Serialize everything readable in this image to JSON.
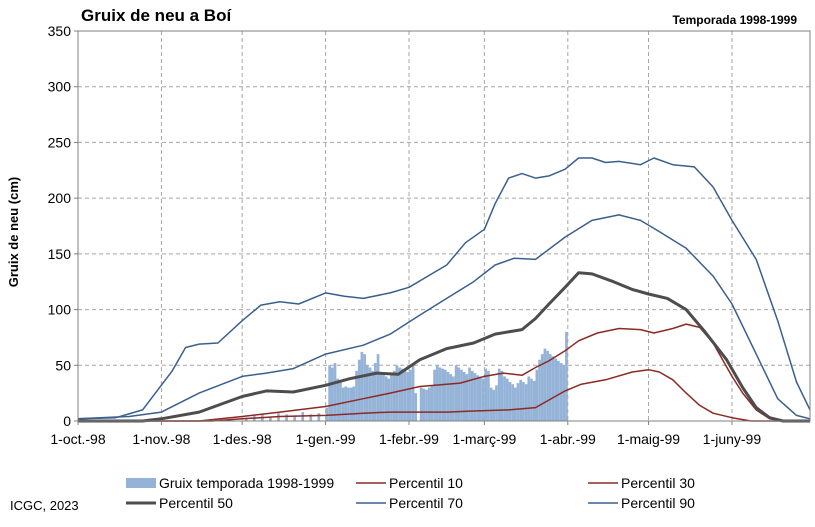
{
  "chart_data": {
    "type": "line",
    "title": "Gruix de neu a Boí",
    "subtitle": "Temporada 1998-1999",
    "ylabel": "Gruix de neu (cm)",
    "xlabel": "",
    "ylim": [
      0,
      350
    ],
    "yticks": [
      0,
      50,
      100,
      150,
      200,
      250,
      300,
      350
    ],
    "xlim": [
      "1998-10-01",
      "1999-06-30"
    ],
    "xtick_dates": [
      "1998-10-01",
      "1998-11-01",
      "1998-12-01",
      "1999-01-01",
      "1999-02-01",
      "1999-03-01",
      "1999-04-01",
      "1999-05-01",
      "1999-06-01"
    ],
    "xtick_labels": [
      "1-oct.-98",
      "1-nov.-98",
      "1-des.-98",
      "1-gen.-99",
      "1-febr.-99",
      "1-març-99",
      "1-abr.-99",
      "1-maig-99",
      "1-juny-99"
    ],
    "grid": true,
    "legend_placement": "bottom",
    "bars": {
      "name": "Gruix temporada 1998-1999",
      "color": "#95b3d7",
      "points": [
        [
          "1998-12-02",
          3
        ],
        [
          "1998-12-05",
          5
        ],
        [
          "1998-12-08",
          6
        ],
        [
          "1998-12-11",
          4
        ],
        [
          "1998-12-14",
          7
        ],
        [
          "1998-12-17",
          6
        ],
        [
          "1998-12-20",
          5
        ],
        [
          "1998-12-23",
          8
        ],
        [
          "1998-12-26",
          6
        ],
        [
          "1998-12-29",
          7
        ],
        [
          "1999-01-01",
          12
        ],
        [
          "1999-01-02",
          50
        ],
        [
          "1999-01-03",
          48
        ],
        [
          "1999-01-04",
          52
        ],
        [
          "1999-01-05",
          38
        ],
        [
          "1999-01-06",
          35
        ],
        [
          "1999-01-07",
          30
        ],
        [
          "1999-01-08",
          31
        ],
        [
          "1999-01-09",
          30
        ],
        [
          "1999-01-10",
          30
        ],
        [
          "1999-01-11",
          31
        ],
        [
          "1999-01-12",
          45
        ],
        [
          "1999-01-13",
          55
        ],
        [
          "1999-01-14",
          62
        ],
        [
          "1999-01-15",
          60
        ],
        [
          "1999-01-16",
          50
        ],
        [
          "1999-01-17",
          48
        ],
        [
          "1999-01-18",
          45
        ],
        [
          "1999-01-19",
          52
        ],
        [
          "1999-01-20",
          60
        ],
        [
          "1999-01-21",
          44
        ],
        [
          "1999-01-22",
          42
        ],
        [
          "1999-01-23",
          40
        ],
        [
          "1999-01-24",
          38
        ],
        [
          "1999-01-25",
          42
        ],
        [
          "1999-01-26",
          45
        ],
        [
          "1999-01-27",
          50
        ],
        [
          "1999-01-28",
          48
        ],
        [
          "1999-01-29",
          47
        ],
        [
          "1999-01-30",
          45
        ],
        [
          "1999-01-31",
          44
        ],
        [
          "1999-02-01",
          46
        ],
        [
          "1999-02-02",
          50
        ],
        [
          "1999-02-03",
          25
        ],
        [
          "1999-02-05",
          30
        ],
        [
          "1999-02-06",
          29
        ],
        [
          "1999-02-07",
          28
        ],
        [
          "1999-02-08",
          30
        ],
        [
          "1999-02-09",
          32
        ],
        [
          "1999-02-10",
          46
        ],
        [
          "1999-02-11",
          50
        ],
        [
          "1999-02-12",
          48
        ],
        [
          "1999-02-13",
          47
        ],
        [
          "1999-02-14",
          46
        ],
        [
          "1999-02-15",
          44
        ],
        [
          "1999-02-16",
          42
        ],
        [
          "1999-02-17",
          40
        ],
        [
          "1999-02-18",
          50
        ],
        [
          "1999-02-19",
          48
        ],
        [
          "1999-02-20",
          46
        ],
        [
          "1999-02-21",
          44
        ],
        [
          "1999-02-22",
          42
        ],
        [
          "1999-02-23",
          48
        ],
        [
          "1999-02-24",
          45
        ],
        [
          "1999-02-25",
          43
        ],
        [
          "1999-02-26",
          41
        ],
        [
          "1999-02-27",
          40
        ],
        [
          "1999-02-28",
          38
        ],
        [
          "1999-03-01",
          47
        ],
        [
          "1999-03-02",
          45
        ],
        [
          "1999-03-03",
          30
        ],
        [
          "1999-03-04",
          28
        ],
        [
          "1999-03-05",
          32
        ],
        [
          "1999-03-06",
          47
        ],
        [
          "1999-03-07",
          45
        ],
        [
          "1999-03-08",
          40
        ],
        [
          "1999-03-09",
          38
        ],
        [
          "1999-03-10",
          35
        ],
        [
          "1999-03-11",
          33
        ],
        [
          "1999-03-12",
          30
        ],
        [
          "1999-03-13",
          34
        ],
        [
          "1999-03-14",
          37
        ],
        [
          "1999-03-15",
          35
        ],
        [
          "1999-03-16",
          33
        ],
        [
          "1999-03-17",
          40
        ],
        [
          "1999-03-18",
          38
        ],
        [
          "1999-03-19",
          36
        ],
        [
          "1999-03-20",
          46
        ],
        [
          "1999-03-21",
          55
        ],
        [
          "1999-03-22",
          60
        ],
        [
          "1999-03-23",
          65
        ],
        [
          "1999-03-24",
          63
        ],
        [
          "1999-03-25",
          60
        ],
        [
          "1999-03-26",
          58
        ],
        [
          "1999-03-27",
          56
        ],
        [
          "1999-03-28",
          54
        ],
        [
          "1999-03-29",
          52
        ],
        [
          "1999-03-30",
          50
        ],
        [
          "1999-03-31",
          80
        ]
      ]
    },
    "series": [
      {
        "name": "Percentil 10",
        "color": "#8b2a25",
        "width": 1.5,
        "points": [
          [
            "1998-10-01",
            0
          ],
          [
            "1998-11-20",
            0
          ],
          [
            "1998-12-01",
            2
          ],
          [
            "1998-12-15",
            4
          ],
          [
            "1999-01-01",
            5
          ],
          [
            "1999-01-15",
            7
          ],
          [
            "1999-01-25",
            8
          ],
          [
            "1999-02-15",
            8
          ],
          [
            "1999-02-25",
            9
          ],
          [
            "1999-03-10",
            10
          ],
          [
            "1999-03-20",
            12
          ],
          [
            "1999-03-31",
            27
          ],
          [
            "1999-04-06",
            33
          ],
          [
            "1999-04-15",
            37
          ],
          [
            "1999-04-25",
            44
          ],
          [
            "1999-05-01",
            46
          ],
          [
            "1999-05-05",
            44
          ],
          [
            "1999-05-10",
            37
          ],
          [
            "1999-05-15",
            25
          ],
          [
            "1999-05-20",
            14
          ],
          [
            "1999-05-25",
            7
          ],
          [
            "1999-06-01",
            3
          ],
          [
            "1999-06-08",
            0
          ],
          [
            "1999-06-30",
            0
          ]
        ]
      },
      {
        "name": "Percentil 30",
        "color": "#8b2a25",
        "width": 1.5,
        "points": [
          [
            "1998-10-01",
            0
          ],
          [
            "1998-11-15",
            0
          ],
          [
            "1998-12-01",
            4
          ],
          [
            "1998-12-15",
            8
          ],
          [
            "1999-01-01",
            13
          ],
          [
            "1999-01-15",
            20
          ],
          [
            "1999-01-25",
            25
          ],
          [
            "1999-02-05",
            31
          ],
          [
            "1999-02-20",
            34
          ],
          [
            "1999-03-01",
            40
          ],
          [
            "1999-03-08",
            43
          ],
          [
            "1999-03-15",
            41
          ],
          [
            "1999-03-20",
            48
          ],
          [
            "1999-03-25",
            54
          ],
          [
            "1999-03-31",
            63
          ],
          [
            "1999-04-05",
            72
          ],
          [
            "1999-04-12",
            79
          ],
          [
            "1999-04-20",
            83
          ],
          [
            "1999-04-28",
            82
          ],
          [
            "1999-05-03",
            79
          ],
          [
            "1999-05-10",
            83
          ],
          [
            "1999-05-15",
            87
          ],
          [
            "1999-05-20",
            84
          ],
          [
            "1999-05-25",
            70
          ],
          [
            "1999-06-01",
            40
          ],
          [
            "1999-06-05",
            25
          ],
          [
            "1999-06-10",
            10
          ],
          [
            "1999-06-15",
            2
          ],
          [
            "1999-06-20",
            0
          ],
          [
            "1999-06-30",
            0
          ]
        ]
      },
      {
        "name": "Percentil 50",
        "color": "#4d4d4d",
        "width": 3,
        "points": [
          [
            "1998-10-01",
            0
          ],
          [
            "1998-10-25",
            0
          ],
          [
            "1998-11-01",
            2
          ],
          [
            "1998-11-15",
            8
          ],
          [
            "1998-12-01",
            22
          ],
          [
            "1998-12-10",
            27
          ],
          [
            "1998-12-20",
            26
          ],
          [
            "1999-01-01",
            32
          ],
          [
            "1999-01-10",
            38
          ],
          [
            "1999-01-20",
            43
          ],
          [
            "1999-01-28",
            42
          ],
          [
            "1999-02-05",
            55
          ],
          [
            "1999-02-15",
            65
          ],
          [
            "1999-02-25",
            70
          ],
          [
            "1999-03-05",
            78
          ],
          [
            "1999-03-15",
            82
          ],
          [
            "1999-03-20",
            92
          ],
          [
            "1999-03-25",
            105
          ],
          [
            "1999-03-31",
            120
          ],
          [
            "1999-04-05",
            133
          ],
          [
            "1999-04-10",
            132
          ],
          [
            "1999-04-18",
            125
          ],
          [
            "1999-04-25",
            118
          ],
          [
            "1999-05-01",
            114
          ],
          [
            "1999-05-08",
            110
          ],
          [
            "1999-05-15",
            100
          ],
          [
            "1999-05-22",
            80
          ],
          [
            "1999-05-30",
            55
          ],
          [
            "1999-06-05",
            30
          ],
          [
            "1999-06-10",
            12
          ],
          [
            "1999-06-15",
            3
          ],
          [
            "1999-06-20",
            0
          ],
          [
            "1999-06-30",
            0
          ]
        ]
      },
      {
        "name": "Percentil 70",
        "color": "#3a5f8e",
        "width": 1.5,
        "points": [
          [
            "1998-10-01",
            2
          ],
          [
            "1998-10-20",
            4
          ],
          [
            "1998-11-01",
            8
          ],
          [
            "1998-11-15",
            25
          ],
          [
            "1998-12-01",
            40
          ],
          [
            "1998-12-10",
            43
          ],
          [
            "1998-12-20",
            47
          ],
          [
            "1999-01-01",
            60
          ],
          [
            "1999-01-15",
            68
          ],
          [
            "1999-01-25",
            78
          ],
          [
            "1999-02-05",
            95
          ],
          [
            "1999-02-15",
            110
          ],
          [
            "1999-02-25",
            125
          ],
          [
            "1999-03-05",
            140
          ],
          [
            "1999-03-12",
            146
          ],
          [
            "1999-03-20",
            145
          ],
          [
            "1999-03-31",
            165
          ],
          [
            "1999-04-10",
            180
          ],
          [
            "1999-04-20",
            185
          ],
          [
            "1999-04-28",
            180
          ],
          [
            "1999-05-05",
            170
          ],
          [
            "1999-05-15",
            155
          ],
          [
            "1999-05-25",
            130
          ],
          [
            "1999-06-01",
            105
          ],
          [
            "1999-06-10",
            60
          ],
          [
            "1999-06-18",
            20
          ],
          [
            "1999-06-25",
            5
          ],
          [
            "1999-06-30",
            2
          ]
        ]
      },
      {
        "name": "Percentil 90",
        "color": "#3a5f8e",
        "width": 1.5,
        "points": [
          [
            "1998-10-01",
            2
          ],
          [
            "1998-10-15",
            3
          ],
          [
            "1998-10-25",
            10
          ],
          [
            "1998-11-05",
            45
          ],
          [
            "1998-11-10",
            66
          ],
          [
            "1998-11-15",
            69
          ],
          [
            "1998-11-22",
            70
          ],
          [
            "1998-12-01",
            90
          ],
          [
            "1998-12-08",
            104
          ],
          [
            "1998-12-15",
            107
          ],
          [
            "1998-12-22",
            105
          ],
          [
            "1999-01-01",
            115
          ],
          [
            "1999-01-08",
            112
          ],
          [
            "1999-01-15",
            110
          ],
          [
            "1999-01-25",
            115
          ],
          [
            "1999-02-01",
            120
          ],
          [
            "1999-02-08",
            130
          ],
          [
            "1999-02-15",
            140
          ],
          [
            "1999-02-22",
            160
          ],
          [
            "1999-03-01",
            172
          ],
          [
            "1999-03-05",
            195
          ],
          [
            "1999-03-10",
            218
          ],
          [
            "1999-03-15",
            222
          ],
          [
            "1999-03-20",
            218
          ],
          [
            "1999-03-25",
            220
          ],
          [
            "1999-03-31",
            226
          ],
          [
            "1999-04-05",
            236
          ],
          [
            "1999-04-10",
            236
          ],
          [
            "1999-04-15",
            232
          ],
          [
            "1999-04-20",
            233
          ],
          [
            "1999-04-28",
            230
          ],
          [
            "1999-05-03",
            236
          ],
          [
            "1999-05-10",
            230
          ],
          [
            "1999-05-18",
            228
          ],
          [
            "1999-05-25",
            210
          ],
          [
            "1999-06-01",
            180
          ],
          [
            "1999-06-10",
            145
          ],
          [
            "1999-06-18",
            90
          ],
          [
            "1999-06-25",
            35
          ],
          [
            "1999-06-30",
            10
          ]
        ]
      }
    ]
  },
  "credit": "ICGC, 2023"
}
